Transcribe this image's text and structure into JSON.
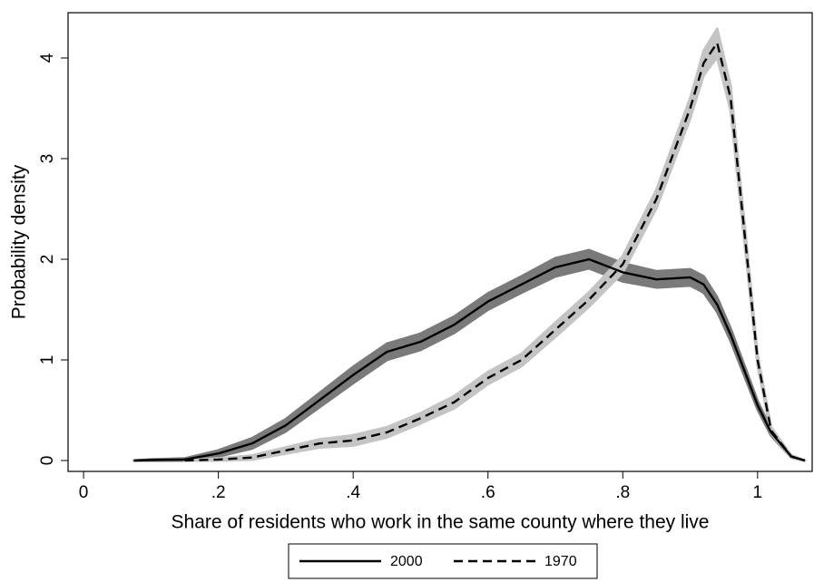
{
  "chart_data": {
    "type": "line",
    "xlabel": "Share of residents who work in the same county where they live",
    "ylabel": "Probability density",
    "x": [
      0.075,
      0.1,
      0.15,
      0.2,
      0.25,
      0.3,
      0.35,
      0.4,
      0.45,
      0.5,
      0.55,
      0.6,
      0.65,
      0.7,
      0.75,
      0.8,
      0.85,
      0.9,
      0.92,
      0.94,
      0.96,
      0.98,
      1.0,
      1.02,
      1.05,
      1.07
    ],
    "series": [
      {
        "name": "2000",
        "color": "#000000",
        "band_color": "#7a7a7a",
        "style": "solid",
        "values": [
          0,
          0.005,
          0.01,
          0.07,
          0.17,
          0.35,
          0.6,
          0.85,
          1.08,
          1.18,
          1.35,
          1.58,
          1.75,
          1.92,
          2.0,
          1.87,
          1.8,
          1.82,
          1.75,
          1.55,
          1.25,
          0.9,
          0.55,
          0.28,
          0.04,
          0
        ],
        "error": [
          0,
          0.005,
          0.01,
          0.03,
          0.05,
          0.06,
          0.07,
          0.08,
          0.08,
          0.08,
          0.08,
          0.08,
          0.08,
          0.09,
          0.09,
          0.09,
          0.08,
          0.08,
          0.08,
          0.07,
          0.06,
          0.05,
          0.04,
          0.03,
          0.01,
          0
        ]
      },
      {
        "name": "1970",
        "color": "#000000",
        "band_color": "#c4c4c4",
        "style": "dashed",
        "values": [
          null,
          null,
          0,
          0.01,
          0.03,
          0.1,
          0.17,
          0.2,
          0.28,
          0.42,
          0.58,
          0.82,
          1.0,
          1.3,
          1.6,
          1.95,
          2.6,
          3.5,
          3.95,
          4.15,
          3.6,
          2.3,
          1.0,
          0.3,
          0.04,
          0
        ],
        "error": [
          null,
          null,
          0,
          0.01,
          0.02,
          0.03,
          0.04,
          0.05,
          0.05,
          0.05,
          0.06,
          0.06,
          0.06,
          0.07,
          0.07,
          0.08,
          0.09,
          0.1,
          0.12,
          0.14,
          0.12,
          0.09,
          0.05,
          0.03,
          0.01,
          0
        ]
      }
    ],
    "xlim": [
      -0.023,
      1.081
    ],
    "ylim": [
      -0.108,
      4.45
    ],
    "xticks": [
      0,
      {
        "value": 0.2,
        "label": ".2"
      },
      {
        "value": 0.4,
        "label": ".4"
      },
      {
        "value": 0.6,
        "label": ".6"
      },
      {
        "value": 0.8,
        "label": ".8"
      },
      1
    ],
    "yticks": [
      0,
      1,
      2,
      3,
      4
    ],
    "legend": "bottom"
  }
}
